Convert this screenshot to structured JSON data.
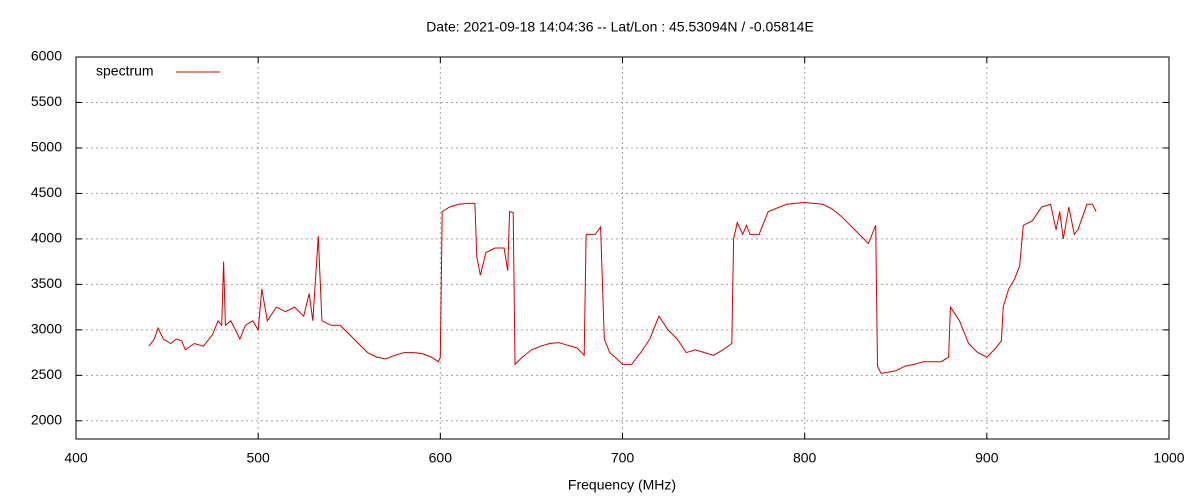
{
  "chart_data": {
    "type": "line",
    "title": "Date: 2021-09-18 14:04:36  --  Lat/Lon : 45.53094N / -0.05814E",
    "x_label": "Frequency (MHz)",
    "xlim": [
      400,
      1000
    ],
    "xticks": [
      400,
      500,
      600,
      700,
      800,
      900,
      1000
    ],
    "ylim": [
      1800,
      6000
    ],
    "yticks": [
      2000,
      2500,
      3000,
      3500,
      4000,
      4500,
      5000,
      5500,
      6000
    ],
    "grid": true,
    "legend": "top-left",
    "series": [
      {
        "name": "spectrum",
        "color": "#d00000",
        "x": [
          440,
          443,
          445,
          448,
          452,
          455,
          458,
          460,
          465,
          470,
          475,
          478,
          480,
          481,
          482,
          485,
          490,
          493,
          497,
          500,
          502,
          505,
          510,
          515,
          520,
          525,
          528,
          530,
          533,
          535,
          540,
          545,
          550,
          555,
          560,
          565,
          570,
          575,
          580,
          585,
          590,
          595,
          599,
          600,
          601,
          605,
          610,
          615,
          619,
          620,
          622,
          625,
          630,
          635,
          637,
          638,
          640,
          641,
          645,
          650,
          655,
          660,
          665,
          670,
          675,
          679,
          680,
          685,
          688,
          690,
          693,
          697,
          700,
          705,
          710,
          715,
          720,
          725,
          730,
          735,
          740,
          745,
          750,
          755,
          760,
          761,
          763,
          766,
          768,
          770,
          775,
          780,
          790,
          800,
          810,
          815,
          820,
          825,
          830,
          835,
          839,
          840,
          842,
          850,
          855,
          860,
          865,
          870,
          875,
          879,
          880,
          885,
          890,
          895,
          900,
          905,
          908,
          909,
          912,
          915,
          918,
          920,
          925,
          930,
          935,
          938,
          940,
          942,
          945,
          948,
          950,
          955,
          958,
          960
        ],
        "values": [
          2820,
          2900,
          3020,
          2900,
          2850,
          2900,
          2880,
          2780,
          2850,
          2820,
          2950,
          3100,
          3050,
          3750,
          3050,
          3100,
          2900,
          3050,
          3100,
          3000,
          3450,
          3100,
          3250,
          3200,
          3250,
          3150,
          3400,
          3100,
          4030,
          3100,
          3050,
          3050,
          2950,
          2850,
          2750,
          2700,
          2680,
          2720,
          2750,
          2750,
          2740,
          2700,
          2650,
          2700,
          4300,
          4350,
          4380,
          4390,
          4390,
          3800,
          3600,
          3850,
          3900,
          3900,
          3650,
          4300,
          4290,
          2620,
          2700,
          2780,
          2820,
          2850,
          2860,
          2830,
          2800,
          2720,
          4050,
          4050,
          4130,
          2900,
          2750,
          2680,
          2620,
          2620,
          2750,
          2900,
          3150,
          3000,
          2900,
          2750,
          2780,
          2750,
          2720,
          2780,
          2850,
          4000,
          4180,
          4050,
          4150,
          4050,
          4050,
          4300,
          4380,
          4400,
          4380,
          4330,
          4250,
          4150,
          4050,
          3950,
          4150,
          2600,
          2520,
          2550,
          2600,
          2620,
          2650,
          2650,
          2650,
          2700,
          3250,
          3100,
          2850,
          2750,
          2700,
          2800,
          2880,
          3250,
          3450,
          3550,
          3700,
          4150,
          4200,
          4350,
          4380,
          4100,
          4300,
          4000,
          4350,
          4050,
          4100,
          4380,
          4380,
          4300
        ]
      }
    ]
  }
}
